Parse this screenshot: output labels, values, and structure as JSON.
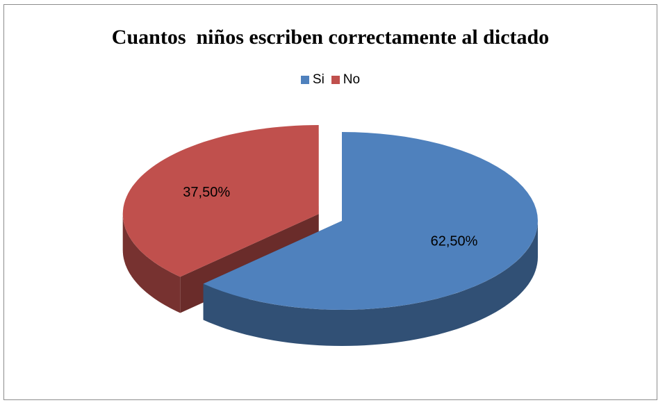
{
  "chart_data": {
    "type": "pie",
    "title": "Cuantos  niños escriben correctamente al dictado",
    "legend_position": "top",
    "categories": [
      "Si",
      "No"
    ],
    "values": [
      62.5,
      37.5
    ],
    "data_labels": [
      "62,50%",
      "37,50%"
    ],
    "colors": [
      "#4f81bd",
      "#c0504d"
    ]
  }
}
